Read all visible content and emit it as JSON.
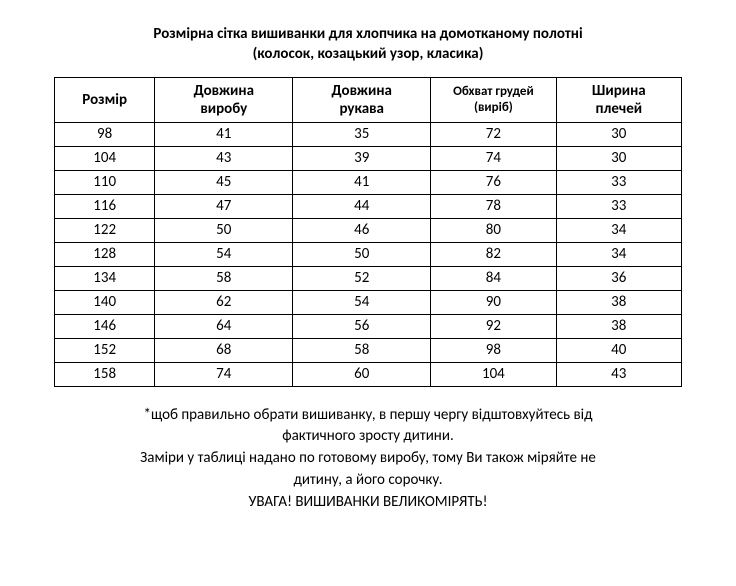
{
  "title": {
    "line1": "Розмірна сітка вишиванки для хлопчика на домотканому полотні",
    "line2": "(колосок, козацький узор, класика)"
  },
  "table": {
    "columns": [
      "Розмір",
      "Довжина виробу",
      "Довжина рукава",
      "Обхват грудей (виріб)",
      "Ширина плечей"
    ],
    "column_widths_pct": [
      16,
      22,
      22,
      20,
      20
    ],
    "header_font_small_col_index": 3,
    "rows": [
      [
        "98",
        "41",
        "35",
        "72",
        "30"
      ],
      [
        "104",
        "43",
        "39",
        "74",
        "30"
      ],
      [
        "110",
        "45",
        "41",
        "76",
        "33"
      ],
      [
        "116",
        "47",
        "44",
        "78",
        "33"
      ],
      [
        "122",
        "50",
        "46",
        "80",
        "34"
      ],
      [
        "128",
        "54",
        "50",
        "82",
        "34"
      ],
      [
        "134",
        "58",
        "52",
        "84",
        "36"
      ],
      [
        "140",
        "62",
        "54",
        "90",
        "38"
      ],
      [
        "146",
        "64",
        "56",
        "92",
        "38"
      ],
      [
        "152",
        "68",
        "58",
        "98",
        "40"
      ],
      [
        "158",
        "74",
        "60",
        "104",
        "43"
      ]
    ]
  },
  "footnote": {
    "p1_l1": "*щоб правильно обрати вишиванку, в першу чергу відштовхуйтесь від",
    "p1_l2": "фактичного зросту дитини.",
    "p2_l1": "Заміри у таблиці надано по готовому виробу, тому Ви також міряйте не",
    "p2_l2": "дитину, а його сорочку.",
    "p3": "УВАГА! ВИШИВАНКИ ВЕЛИКОМІРЯТЬ!"
  },
  "colors": {
    "text": "#000000",
    "background": "#ffffff",
    "border": "#000000"
  },
  "typography": {
    "title_fontsize_pt": 11,
    "header_fontsize_pt": 11,
    "header_small_fontsize_pt": 10,
    "cell_fontsize_pt": 11,
    "footnote_fontsize_pt": 11,
    "font_family": "Calibri"
  }
}
